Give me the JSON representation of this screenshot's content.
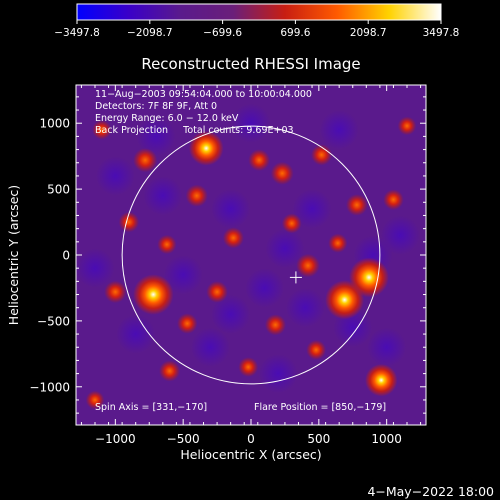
{
  "colorbar": {
    "ticks": [
      "-3497.8",
      "-2098.7",
      "-699.6",
      "699.6",
      "2098.7",
      "3497.8"
    ],
    "tick_values": [
      -3497.8,
      -2098.7,
      -699.6,
      699.6,
      2098.7,
      3497.8
    ],
    "colors": [
      "#0000ff",
      "#3a00c8",
      "#5a1a8c",
      "#6a1e7a",
      "#c81e12",
      "#ff5a00",
      "#ffd200",
      "#ffffff"
    ]
  },
  "chart_data": {
    "type": "heatmap",
    "title": "Reconstructed RHESSI Image",
    "xlabel": "Heliocentric X (arcsec)",
    "ylabel": "Heliocentric Y (arcsec)",
    "xlim": [
      -1290,
      1290
    ],
    "ylim": [
      -1290,
      1290
    ],
    "x_ticks": [
      -1000,
      -500,
      0,
      500,
      1000
    ],
    "y_ticks": [
      -1000,
      -500,
      0,
      500,
      1000
    ],
    "x_tick_labels": [
      "−1000",
      "−500",
      "0",
      "500",
      "1000"
    ],
    "y_tick_labels": [
      "−1000",
      "−500",
      "0",
      "500",
      "1000"
    ],
    "value_range": [
      -3497.8,
      3497.8
    ],
    "solar_limb_radius": 950,
    "flare_position": [
      850,
      -179
    ],
    "marker_position": [
      331,
      -170
    ],
    "annotations": [
      "11−Aug−2003 09:54:04.000 to 10:00:04.000",
      "Detectors: 7F 8F 9F, Att 0",
      "Energy Range: 6.0 − 12.0 keV",
      "Back Projection     Total counts: 9.69E+03"
    ],
    "spin_axis_text": "Spin Axis = [331,−170]",
    "flare_position_text": "Flare Position = [850,−179]",
    "hot_spots": [
      {
        "x": -720,
        "y": -300,
        "value": 3400
      },
      {
        "x": 690,
        "y": -340,
        "value": 3200
      },
      {
        "x": 870,
        "y": -170,
        "value": 3300
      },
      {
        "x": -330,
        "y": 810,
        "value": 2600
      },
      {
        "x": 960,
        "y": -950,
        "value": 2300
      },
      {
        "x": -780,
        "y": 720,
        "value": 1800
      },
      {
        "x": 420,
        "y": -80,
        "value": 1700
      },
      {
        "x": 230,
        "y": 620,
        "value": 1600
      },
      {
        "x": -1000,
        "y": -280,
        "value": 1500
      },
      {
        "x": -400,
        "y": 450,
        "value": 1500
      },
      {
        "x": -250,
        "y": -280,
        "value": 1400
      },
      {
        "x": 60,
        "y": 720,
        "value": 1400
      },
      {
        "x": 520,
        "y": 760,
        "value": 1300
      },
      {
        "x": -130,
        "y": 130,
        "value": 1300
      },
      {
        "x": 780,
        "y": 380,
        "value": 1400
      },
      {
        "x": -600,
        "y": -880,
        "value": 1300
      },
      {
        "x": 180,
        "y": -530,
        "value": 1300
      },
      {
        "x": -900,
        "y": 250,
        "value": 1200
      },
      {
        "x": 1050,
        "y": 420,
        "value": 1200
      },
      {
        "x": -470,
        "y": -520,
        "value": 1200
      },
      {
        "x": 480,
        "y": -720,
        "value": 1100
      },
      {
        "x": -20,
        "y": -850,
        "value": 1100
      },
      {
        "x": 300,
        "y": 240,
        "value": 1100
      },
      {
        "x": -620,
        "y": 80,
        "value": 1000
      },
      {
        "x": 640,
        "y": 90,
        "value": 1000
      },
      {
        "x": -1100,
        "y": 950,
        "value": 1000
      },
      {
        "x": 1150,
        "y": 980,
        "value": 900
      },
      {
        "x": -1150,
        "y": -1100,
        "value": 900
      }
    ]
  },
  "footer": {
    "date": "4−May−2022 18:00"
  }
}
